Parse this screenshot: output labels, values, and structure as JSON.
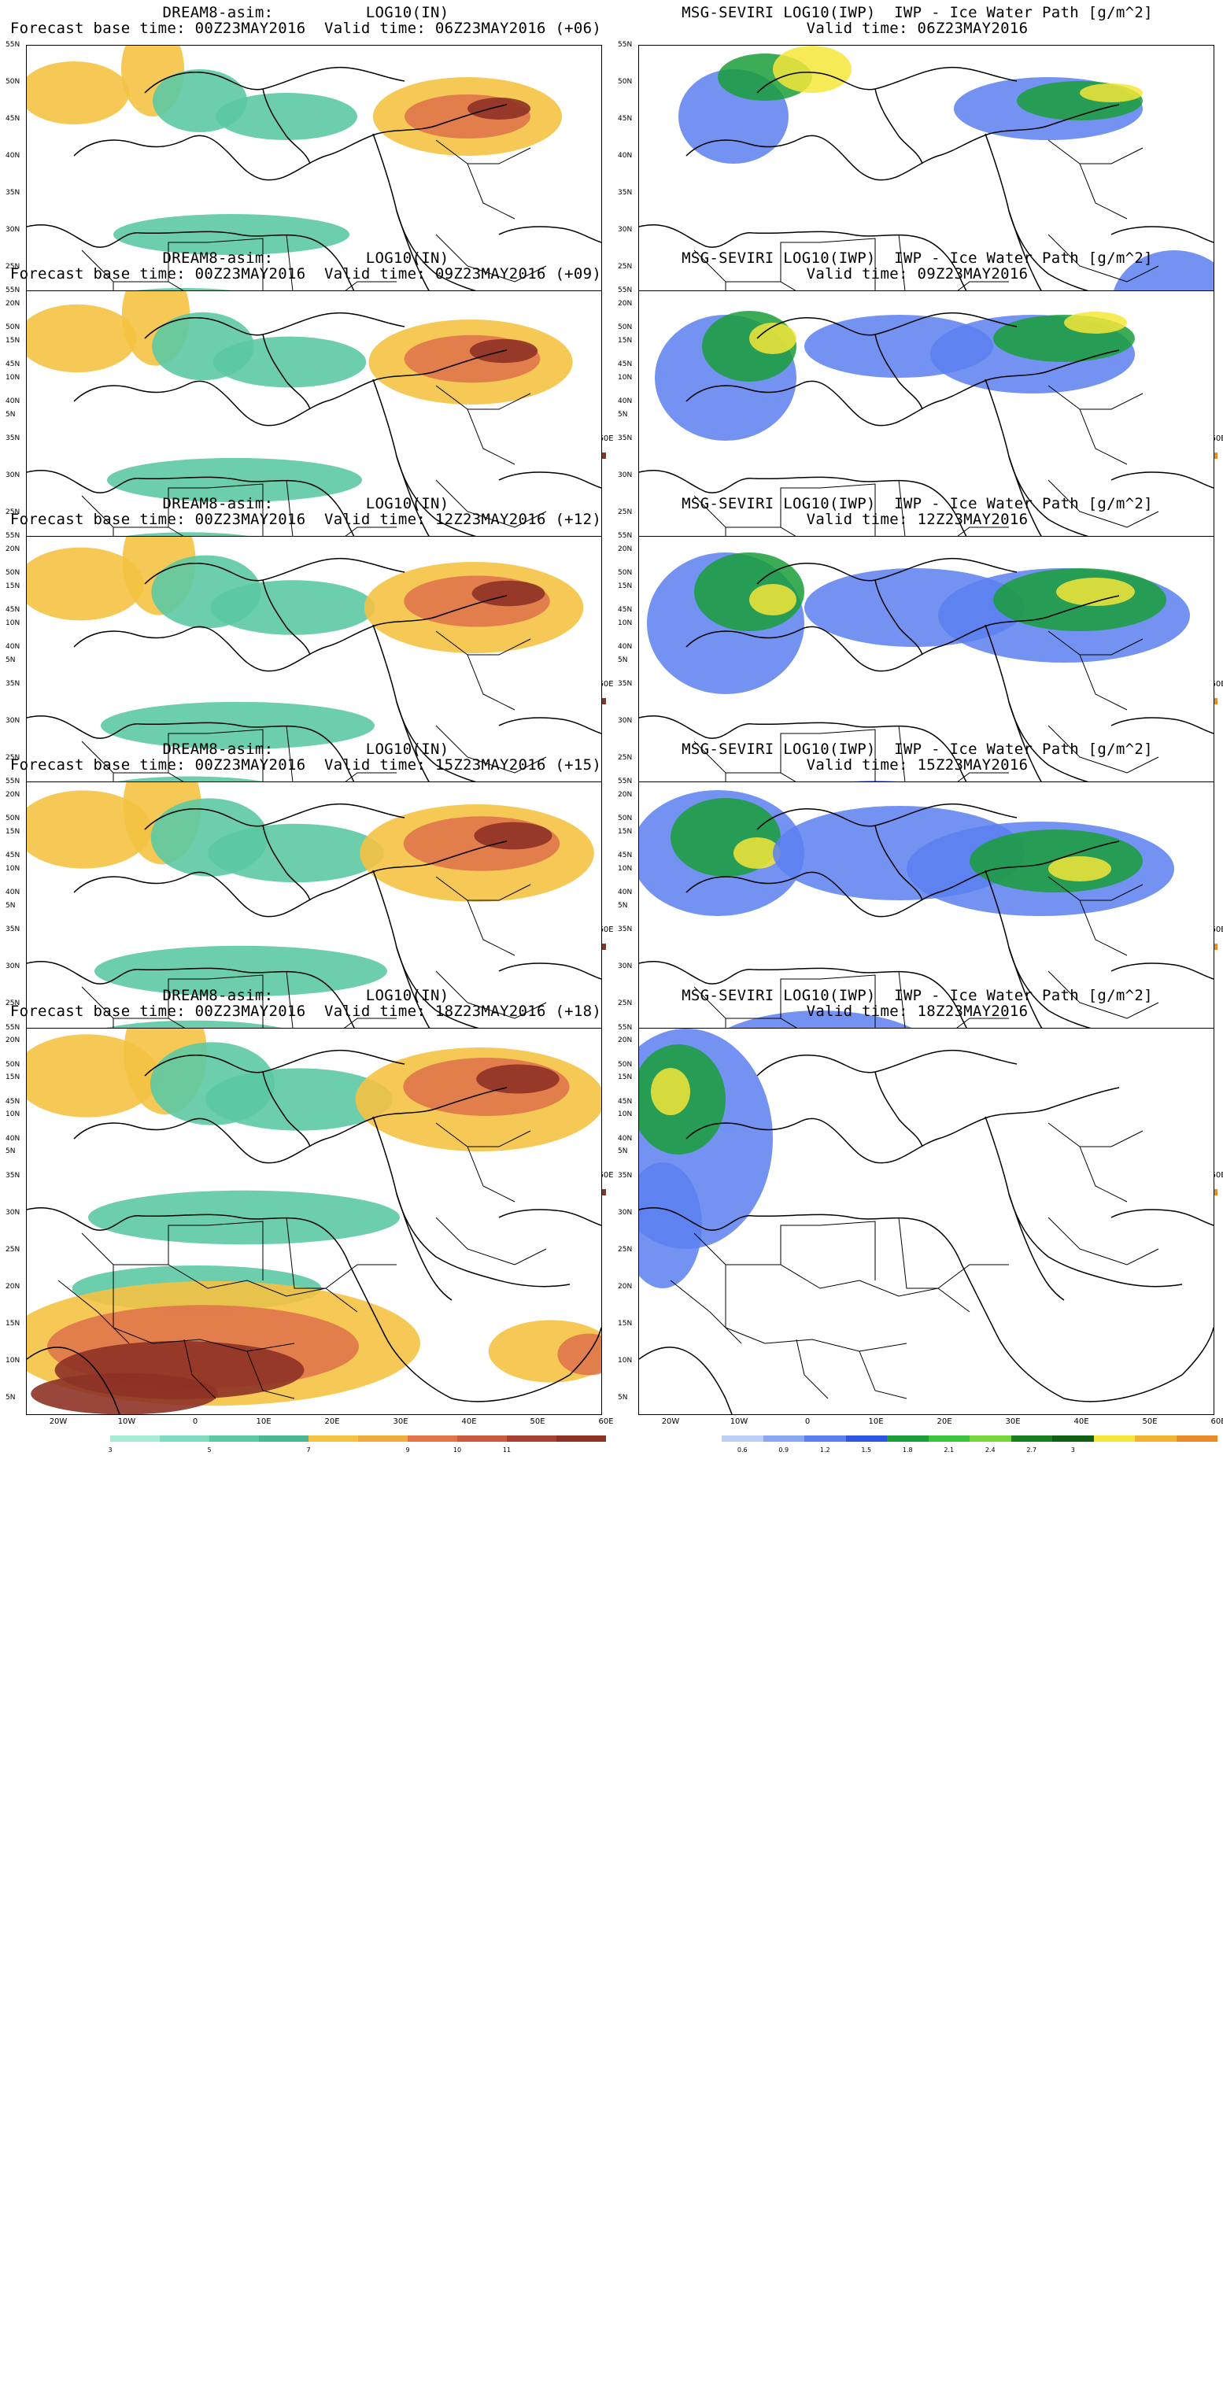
{
  "left_panels": [
    {
      "title": "DREAM8-asim:          LOG10(IN)",
      "subtitle": "Forecast base time: 00Z23MAY2016  Valid time: 06Z23MAY2016 (+06)"
    },
    {
      "title": "DREAM8-asim:          LOG10(IN)",
      "subtitle": "Forecast base time: 00Z23MAY2016  Valid time: 09Z23MAY2016 (+09)"
    },
    {
      "title": "DREAM8-asim:          LOG10(IN)",
      "subtitle": "Forecast base time: 00Z23MAY2016  Valid time: 12Z23MAY2016 (+12)"
    },
    {
      "title": "DREAM8-asim:          LOG10(IN)",
      "subtitle": "Forecast base time: 00Z23MAY2016  Valid time: 15Z23MAY2016 (+15)"
    },
    {
      "title": "DREAM8-asim:          LOG10(IN)",
      "subtitle": "Forecast base time: 00Z23MAY2016  Valid time: 18Z23MAY2016 (+18)"
    }
  ],
  "right_panels": [
    {
      "title": "MSG-SEVIRI LOG10(IWP)  IWP - Ice Water Path [g/m^2]",
      "subtitle": "Valid time: 06Z23MAY2016"
    },
    {
      "title": "MSG-SEVIRI LOG10(IWP)  IWP - Ice Water Path [g/m^2]",
      "subtitle": "Valid time: 09Z23MAY2016"
    },
    {
      "title": "MSG-SEVIRI LOG10(IWP)  IWP - Ice Water Path [g/m^2]",
      "subtitle": "Valid time: 12Z23MAY2016"
    },
    {
      "title": "MSG-SEVIRI LOG10(IWP)  IWP - Ice Water Path [g/m^2]",
      "subtitle": "Valid time: 15Z23MAY2016"
    },
    {
      "title": "MSG-SEVIRI LOG10(IWP)  IWP - Ice Water Path [g/m^2]",
      "subtitle": "Valid time: 18Z23MAY2016"
    }
  ],
  "lat_labels": [
    "55N",
    "50N",
    "45N",
    "40N",
    "35N",
    "30N",
    "25N",
    "20N",
    "15N",
    "10N",
    "5N"
  ],
  "lon_labels": [
    "20W",
    "10W",
    "0",
    "10E",
    "20E",
    "30E",
    "40E",
    "50E",
    "60E"
  ],
  "left_colorbar": {
    "labels": [
      "3",
      "5",
      "7",
      "9",
      "10",
      "11"
    ],
    "colors": [
      "#a8ecd8",
      "#7ddcc0",
      "#5cc9a3",
      "#48b894",
      "#f5c243",
      "#eeac3a",
      "#e0754a",
      "#c85a3f",
      "#a8402f",
      "#8e3226"
    ]
  },
  "right_colorbar": {
    "labels": [
      "0.6",
      "0.9",
      "1.2",
      "1.5",
      "1.8",
      "2.1",
      "2.4",
      "2.7",
      "3"
    ],
    "colors": [
      "#bcd0f5",
      "#8aa8f0",
      "#5a7ff0",
      "#2c55e0",
      "#1a9e3a",
      "#3cc43c",
      "#76d83a",
      "#18801e",
      "#0e6014",
      "#f5e63a",
      "#f0b430",
      "#e88a28"
    ]
  },
  "map_colors": {
    "dust_low": "#5cc9a3",
    "dust_mid": "#f5c243",
    "dust_high": "#e0754a",
    "dust_max": "#8e3226",
    "iwp_low": "#5a7ff0",
    "iwp_mid": "#1a9e3a",
    "iwp_high": "#f5e63a",
    "coast": "#000000"
  }
}
